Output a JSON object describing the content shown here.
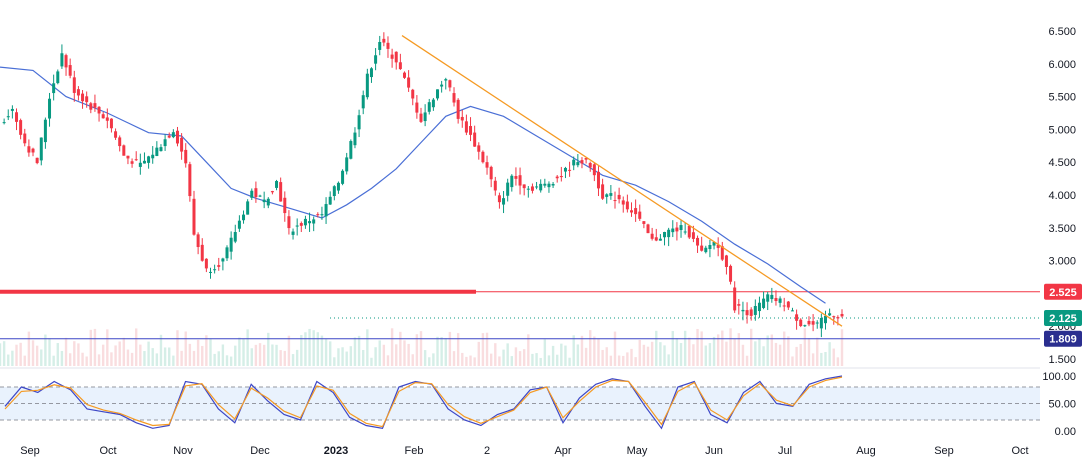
{
  "chart_data": [
    {
      "type": "candlestick",
      "title": "",
      "price_axis": {
        "position": "right",
        "ticks": [
          "6.500",
          "6.000",
          "5.500",
          "5.000",
          "4.500",
          "4.000",
          "3.500",
          "3.000",
          "2.500",
          "2.000",
          "1.500"
        ],
        "tick_values": [
          6.5,
          6.0,
          5.5,
          5.0,
          4.5,
          4.0,
          3.5,
          3.0,
          2.5,
          2.0,
          1.5
        ],
        "range": [
          1.4,
          6.65
        ]
      },
      "time_axis": {
        "ticks": [
          "Sep",
          "Oct",
          "Nov",
          "Dec",
          "2023",
          "Feb",
          "2",
          "Apr",
          "May",
          "Jun",
          "Jul",
          "Aug",
          "Sep",
          "Oct"
        ],
        "bold_tick": "2023"
      },
      "price_labels": [
        {
          "value": 2.525,
          "text": "2.525",
          "color": "#f23645"
        },
        {
          "value": 2.125,
          "text": "2.125",
          "color": "#089981"
        },
        {
          "value": 1.809,
          "text": "1.809",
          "color": "#2a2e8f"
        }
      ],
      "horizontal_lines": [
        {
          "value": 2.525,
          "color": "#f23645",
          "thick_segment": true
        },
        {
          "value": 1.809,
          "color": "#3d47c6"
        },
        {
          "value": 2.125,
          "color": "#089981",
          "dotted": true
        }
      ],
      "trendline": {
        "color": "#f59a23",
        "from": {
          "period": "late Jan 2023",
          "value": 6.43
        },
        "to": {
          "period": "late Jul 2023",
          "value": 2.0
        }
      },
      "moving_average": {
        "color": "#4a6fd6"
      },
      "close_path": [
        {
          "t": 0,
          "v": 5.1
        },
        {
          "t": 3,
          "v": 5.3
        },
        {
          "t": 6,
          "v": 4.8
        },
        {
          "t": 9,
          "v": 4.5
        },
        {
          "t": 12,
          "v": 5.5
        },
        {
          "t": 15,
          "v": 6.15
        },
        {
          "t": 18,
          "v": 5.6
        },
        {
          "t": 22,
          "v": 5.35
        },
        {
          "t": 26,
          "v": 5.15
        },
        {
          "t": 30,
          "v": 4.6
        },
        {
          "t": 34,
          "v": 4.45
        },
        {
          "t": 38,
          "v": 4.7
        },
        {
          "t": 42,
          "v": 5.0
        },
        {
          "t": 45,
          "v": 4.5
        },
        {
          "t": 47,
          "v": 3.4
        },
        {
          "t": 50,
          "v": 2.85
        },
        {
          "t": 54,
          "v": 3.0
        },
        {
          "t": 58,
          "v": 3.6
        },
        {
          "t": 61,
          "v": 4.05
        },
        {
          "t": 64,
          "v": 3.9
        },
        {
          "t": 67,
          "v": 4.2
        },
        {
          "t": 70,
          "v": 3.45
        },
        {
          "t": 74,
          "v": 3.6
        },
        {
          "t": 78,
          "v": 3.7
        },
        {
          "t": 82,
          "v": 4.2
        },
        {
          "t": 86,
          "v": 5.0
        },
        {
          "t": 89,
          "v": 5.8
        },
        {
          "t": 92,
          "v": 6.35
        },
        {
          "t": 96,
          "v": 6.05
        },
        {
          "t": 99,
          "v": 5.6
        },
        {
          "t": 102,
          "v": 5.15
        },
        {
          "t": 105,
          "v": 5.5
        },
        {
          "t": 108,
          "v": 5.8
        },
        {
          "t": 111,
          "v": 5.2
        },
        {
          "t": 114,
          "v": 4.9
        },
        {
          "t": 118,
          "v": 4.4
        },
        {
          "t": 121,
          "v": 3.85
        },
        {
          "t": 124,
          "v": 4.3
        },
        {
          "t": 128,
          "v": 4.1
        },
        {
          "t": 132,
          "v": 4.15
        },
        {
          "t": 136,
          "v": 4.3
        },
        {
          "t": 140,
          "v": 4.55
        },
        {
          "t": 143,
          "v": 4.45
        },
        {
          "t": 146,
          "v": 4.0
        },
        {
          "t": 150,
          "v": 3.95
        },
        {
          "t": 154,
          "v": 3.7
        },
        {
          "t": 158,
          "v": 3.3
        },
        {
          "t": 162,
          "v": 3.45
        },
        {
          "t": 166,
          "v": 3.5
        },
        {
          "t": 170,
          "v": 3.1
        },
        {
          "t": 173,
          "v": 3.3
        },
        {
          "t": 176,
          "v": 2.95
        },
        {
          "t": 178,
          "v": 2.3
        },
        {
          "t": 182,
          "v": 2.2
        },
        {
          "t": 186,
          "v": 2.45
        },
        {
          "t": 190,
          "v": 2.35
        },
        {
          "t": 194,
          "v": 2.05
        },
        {
          "t": 198,
          "v": 2.0
        },
        {
          "t": 201,
          "v": 2.2
        },
        {
          "t": 204,
          "v": 2.15
        }
      ],
      "ma_path": [
        {
          "t": 0,
          "v": 5.95
        },
        {
          "t": 8,
          "v": 5.9
        },
        {
          "t": 16,
          "v": 5.5
        },
        {
          "t": 26,
          "v": 5.25
        },
        {
          "t": 36,
          "v": 4.95
        },
        {
          "t": 44,
          "v": 4.9
        },
        {
          "t": 50,
          "v": 4.5
        },
        {
          "t": 56,
          "v": 4.1
        },
        {
          "t": 62,
          "v": 3.95
        },
        {
          "t": 70,
          "v": 3.8
        },
        {
          "t": 78,
          "v": 3.65
        },
        {
          "t": 84,
          "v": 3.85
        },
        {
          "t": 90,
          "v": 4.1
        },
        {
          "t": 96,
          "v": 4.4
        },
        {
          "t": 102,
          "v": 4.8
        },
        {
          "t": 108,
          "v": 5.2
        },
        {
          "t": 114,
          "v": 5.35
        },
        {
          "t": 122,
          "v": 5.2
        },
        {
          "t": 130,
          "v": 4.9
        },
        {
          "t": 138,
          "v": 4.6
        },
        {
          "t": 146,
          "v": 4.3
        },
        {
          "t": 154,
          "v": 4.15
        },
        {
          "t": 162,
          "v": 3.9
        },
        {
          "t": 170,
          "v": 3.6
        },
        {
          "t": 178,
          "v": 3.25
        },
        {
          "t": 186,
          "v": 2.95
        },
        {
          "t": 194,
          "v": 2.6
        },
        {
          "t": 200,
          "v": 2.35
        }
      ]
    },
    {
      "type": "line",
      "indicator": "stochastic",
      "axis_ticks": [
        "100.00",
        "50.00",
        "0.00"
      ],
      "tick_values": [
        100,
        50,
        0
      ],
      "band": [
        20,
        80
      ],
      "series": [
        {
          "color": "#3d47c6",
          "values": [
            45,
            80,
            70,
            90,
            75,
            40,
            35,
            30,
            15,
            5,
            10,
            90,
            85,
            40,
            15,
            85,
            55,
            30,
            20,
            90,
            70,
            25,
            10,
            5,
            80,
            90,
            85,
            40,
            20,
            10,
            30,
            40,
            75,
            80,
            15,
            60,
            85,
            95,
            90,
            45,
            5,
            80,
            90,
            30,
            15,
            70,
            90,
            50,
            45,
            85,
            95,
            100
          ]
        },
        {
          "color": "#f59a23",
          "values": [
            40,
            72,
            74,
            84,
            78,
            48,
            38,
            32,
            20,
            10,
            12,
            82,
            86,
            48,
            22,
            78,
            60,
            36,
            24,
            82,
            74,
            32,
            14,
            8,
            72,
            88,
            86,
            48,
            26,
            14,
            26,
            38,
            70,
            80,
            24,
            54,
            80,
            92,
            90,
            52,
            12,
            72,
            88,
            38,
            20,
            64,
            86,
            56,
            46,
            80,
            92,
            98
          ]
        }
      ]
    }
  ]
}
